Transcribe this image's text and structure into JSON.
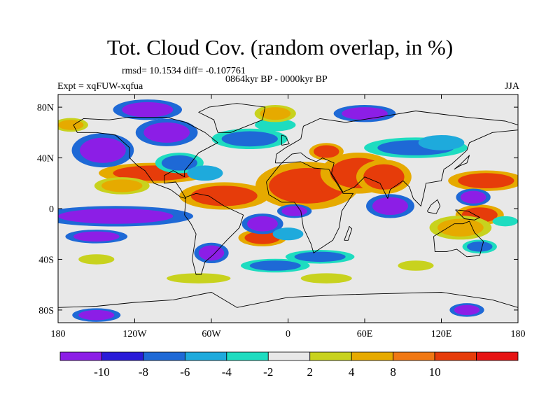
{
  "title": "Tot. Cloud Cov. (random overlap, in %)",
  "stats": "rmsd= 10.1534 diff= -0.107761",
  "period": "0864kyr BP - 0000kyr BP",
  "experiment": "Expt = xqFUW-xqfua",
  "season": "JJA",
  "map": {
    "projection": "cylindrical-equidistant",
    "lon_range": [
      -180,
      180
    ],
    "lat_range": [
      -90,
      90
    ],
    "lon_ticks": [
      {
        "value": -180,
        "label": "180"
      },
      {
        "value": -120,
        "label": "120W"
      },
      {
        "value": -60,
        "label": "60W"
      },
      {
        "value": 0,
        "label": "0"
      },
      {
        "value": 60,
        "label": "60E"
      },
      {
        "value": 120,
        "label": "120E"
      },
      {
        "value": 180,
        "label": "180"
      }
    ],
    "lat_ticks": [
      {
        "value": 80,
        "label": "80N"
      },
      {
        "value": 40,
        "label": "40N"
      },
      {
        "value": 0,
        "label": "0"
      },
      {
        "value": -40,
        "label": "40S"
      },
      {
        "value": -80,
        "label": "80S"
      }
    ],
    "background_color": "#e8e8e8",
    "coastline_color": "#000000",
    "features": [
      {
        "value": 12,
        "lon": 15,
        "lat": 18,
        "rlon": 30,
        "rlat": 14,
        "desc": "Africa/Arabia"
      },
      {
        "value": 12,
        "lon": 55,
        "lat": 28,
        "rlon": 22,
        "rlat": 12
      },
      {
        "value": 12,
        "lon": 75,
        "lat": 25,
        "rlon": 16,
        "rlat": 10
      },
      {
        "value": 12,
        "lon": -50,
        "lat": 10,
        "rlon": 26,
        "rlat": 8
      },
      {
        "value": 12,
        "lon": -105,
        "lat": 28,
        "rlon": 32,
        "rlat": 6
      },
      {
        "value": 12,
        "lon": 155,
        "lat": 22,
        "rlon": 22,
        "rlat": 6
      },
      {
        "value": 12,
        "lon": 150,
        "lat": -5,
        "rlon": 14,
        "rlat": 6
      },
      {
        "value": 12,
        "lon": 30,
        "lat": 45,
        "rlon": 10,
        "rlat": 5
      },
      {
        "value": 12,
        "lon": -20,
        "lat": -23,
        "rlon": 14,
        "rlat": 5
      },
      {
        "value": -12,
        "lon": -135,
        "lat": -6,
        "rlon": 45,
        "rlat": 6
      },
      {
        "value": -12,
        "lon": -145,
        "lat": 46,
        "rlon": 18,
        "rlat": 10
      },
      {
        "value": -12,
        "lon": -95,
        "lat": 60,
        "rlon": 18,
        "rlat": 8
      },
      {
        "value": -12,
        "lon": -150,
        "lat": -22,
        "rlon": 18,
        "rlat": 4
      },
      {
        "value": -12,
        "lon": -20,
        "lat": -12,
        "rlon": 12,
        "rlat": 6
      },
      {
        "value": -12,
        "lon": 5,
        "lat": -2,
        "rlon": 10,
        "rlat": 4
      },
      {
        "value": -12,
        "lon": 80,
        "lat": 2,
        "rlon": 14,
        "rlat": 7
      },
      {
        "value": -12,
        "lon": 145,
        "lat": 9,
        "rlon": 10,
        "rlat": 5
      },
      {
        "value": -12,
        "lon": -60,
        "lat": -35,
        "rlon": 10,
        "rlat": 6
      },
      {
        "value": -12,
        "lon": -110,
        "lat": 78,
        "rlon": 20,
        "rlat": 6
      },
      {
        "value": -12,
        "lon": 60,
        "lat": 75,
        "rlon": 18,
        "rlat": 5
      },
      {
        "value": -12,
        "lon": -150,
        "lat": -84,
        "rlon": 14,
        "rlat": 4
      },
      {
        "value": -12,
        "lon": 140,
        "lat": -80,
        "rlon": 10,
        "rlat": 4
      },
      {
        "value": -7,
        "lon": -30,
        "lat": 55,
        "rlon": 22,
        "rlat": 6
      },
      {
        "value": -7,
        "lon": -85,
        "lat": 36,
        "rlon": 14,
        "rlat": 6
      },
      {
        "value": -7,
        "lon": 100,
        "lat": 48,
        "rlon": 30,
        "rlat": 6
      },
      {
        "value": -7,
        "lon": 25,
        "lat": -38,
        "rlon": 20,
        "rlat": 4
      },
      {
        "value": -7,
        "lon": -10,
        "lat": -45,
        "rlon": 20,
        "rlat": 4
      },
      {
        "value": -7,
        "lon": 150,
        "lat": -30,
        "rlon": 10,
        "rlat": 4
      },
      {
        "value": -5,
        "lon": 120,
        "lat": 52,
        "rlon": 18,
        "rlat": 6
      },
      {
        "value": -5,
        "lon": -65,
        "lat": 28,
        "rlon": 14,
        "rlat": 6
      },
      {
        "value": -5,
        "lon": 0,
        "lat": -20,
        "rlon": 12,
        "rlat": 5
      },
      {
        "value": -3,
        "lon": 170,
        "lat": -10,
        "rlon": 10,
        "rlat": 4
      },
      {
        "value": -3,
        "lon": -10,
        "lat": 66,
        "rlon": 16,
        "rlat": 5
      },
      {
        "value": 6,
        "lon": 135,
        "lat": -15,
        "rlon": 18,
        "rlat": 7
      },
      {
        "value": 6,
        "lon": -130,
        "lat": 18,
        "rlon": 16,
        "rlat": 5
      },
      {
        "value": 6,
        "lon": -10,
        "lat": 75,
        "rlon": 12,
        "rlat": 5
      },
      {
        "value": 6,
        "lon": -170,
        "lat": 66,
        "rlon": 10,
        "rlat": 4
      },
      {
        "value": 3,
        "lon": -70,
        "lat": -55,
        "rlon": 25,
        "rlat": 4
      },
      {
        "value": 3,
        "lon": 30,
        "lat": -55,
        "rlon": 20,
        "rlat": 4
      },
      {
        "value": 3,
        "lon": -150,
        "lat": -40,
        "rlon": 14,
        "rlat": 4
      },
      {
        "value": 3,
        "lon": 100,
        "lat": -45,
        "rlon": 14,
        "rlat": 4
      }
    ],
    "land_outlines": [
      {
        "name": "north-america",
        "points": [
          [
            -168,
            66
          ],
          [
            -160,
            71
          ],
          [
            -140,
            70
          ],
          [
            -125,
            72
          ],
          [
            -95,
            72
          ],
          [
            -80,
            68
          ],
          [
            -65,
            60
          ],
          [
            -55,
            52
          ],
          [
            -70,
            44
          ],
          [
            -76,
            36
          ],
          [
            -81,
            30
          ],
          [
            -81,
            25
          ],
          [
            -90,
            30
          ],
          [
            -97,
            26
          ],
          [
            -97,
            20
          ],
          [
            -88,
            21
          ],
          [
            -84,
            15
          ],
          [
            -80,
            8
          ],
          [
            -84,
            9
          ],
          [
            -92,
            15
          ],
          [
            -105,
            20
          ],
          [
            -112,
            30
          ],
          [
            -118,
            34
          ],
          [
            -124,
            40
          ],
          [
            -124,
            48
          ],
          [
            -135,
            58
          ],
          [
            -150,
            60
          ],
          [
            -165,
            60
          ],
          [
            -168,
            66
          ]
        ]
      },
      {
        "name": "south-america",
        "points": [
          [
            -80,
            9
          ],
          [
            -72,
            12
          ],
          [
            -62,
            10
          ],
          [
            -50,
            2
          ],
          [
            -35,
            -5
          ],
          [
            -38,
            -15
          ],
          [
            -48,
            -25
          ],
          [
            -58,
            -36
          ],
          [
            -65,
            -42
          ],
          [
            -68,
            -52
          ],
          [
            -72,
            -52
          ],
          [
            -75,
            -40
          ],
          [
            -72,
            -20
          ],
          [
            -76,
            -12
          ],
          [
            -81,
            -5
          ],
          [
            -80,
            9
          ]
        ]
      },
      {
        "name": "greenland",
        "points": [
          [
            -55,
            60
          ],
          [
            -45,
            60
          ],
          [
            -20,
            70
          ],
          [
            -18,
            80
          ],
          [
            -40,
            83
          ],
          [
            -62,
            80
          ],
          [
            -70,
            76
          ],
          [
            -58,
            70
          ],
          [
            -55,
            60
          ]
        ]
      },
      {
        "name": "africa",
        "points": [
          [
            -17,
            21
          ],
          [
            -10,
            30
          ],
          [
            -5,
            36
          ],
          [
            10,
            37
          ],
          [
            20,
            32
          ],
          [
            32,
            31
          ],
          [
            35,
            25
          ],
          [
            43,
            12
          ],
          [
            51,
            12
          ],
          [
            42,
            -2
          ],
          [
            40,
            -15
          ],
          [
            35,
            -25
          ],
          [
            20,
            -35
          ],
          [
            18,
            -28
          ],
          [
            12,
            -15
          ],
          [
            10,
            -2
          ],
          [
            5,
            5
          ],
          [
            -5,
            5
          ],
          [
            -15,
            11
          ],
          [
            -17,
            21
          ]
        ]
      },
      {
        "name": "eurasia",
        "points": [
          [
            -10,
            36
          ],
          [
            -9,
            43
          ],
          [
            -2,
            48
          ],
          [
            5,
            52
          ],
          [
            10,
            55
          ],
          [
            12,
            65
          ],
          [
            25,
            71
          ],
          [
            45,
            68
          ],
          [
            70,
            72
          ],
          [
            100,
            77
          ],
          [
            140,
            72
          ],
          [
            170,
            69
          ],
          [
            180,
            66
          ],
          [
            180,
            62
          ],
          [
            160,
            60
          ],
          [
            142,
            52
          ],
          [
            140,
            46
          ],
          [
            128,
            35
          ],
          [
            122,
            31
          ],
          [
            120,
            22
          ],
          [
            108,
            20
          ],
          [
            106,
            10
          ],
          [
            104,
            2
          ],
          [
            98,
            8
          ],
          [
            95,
            17
          ],
          [
            90,
            22
          ],
          [
            80,
            15
          ],
          [
            78,
            8
          ],
          [
            72,
            20
          ],
          [
            60,
            25
          ],
          [
            57,
            22
          ],
          [
            52,
            17
          ],
          [
            43,
            13
          ],
          [
            34,
            28
          ],
          [
            36,
            36
          ],
          [
            27,
            40
          ],
          [
            22,
            37
          ],
          [
            15,
            40
          ],
          [
            10,
            44
          ],
          [
            3,
            43
          ],
          [
            -5,
            36
          ],
          [
            -10,
            36
          ]
        ]
      },
      {
        "name": "australia",
        "points": [
          [
            114,
            -22
          ],
          [
            122,
            -17
          ],
          [
            130,
            -12
          ],
          [
            137,
            -12
          ],
          [
            142,
            -10
          ],
          [
            146,
            -19
          ],
          [
            153,
            -26
          ],
          [
            150,
            -37
          ],
          [
            140,
            -38
          ],
          [
            132,
            -32
          ],
          [
            124,
            -34
          ],
          [
            115,
            -34
          ],
          [
            114,
            -22
          ]
        ]
      },
      {
        "name": "madagascar",
        "points": [
          [
            44,
            -25
          ],
          [
            48,
            -14
          ],
          [
            50,
            -16
          ],
          [
            47,
            -25
          ],
          [
            44,
            -25
          ]
        ]
      },
      {
        "name": "antarctica",
        "points": [
          [
            -180,
            -78
          ],
          [
            -150,
            -77
          ],
          [
            -120,
            -74
          ],
          [
            -90,
            -72
          ],
          [
            -60,
            -66
          ],
          [
            -40,
            -78
          ],
          [
            0,
            -70
          ],
          [
            40,
            -68
          ],
          [
            80,
            -67
          ],
          [
            120,
            -66
          ],
          [
            160,
            -72
          ],
          [
            180,
            -78
          ]
        ]
      },
      {
        "name": "borneo",
        "points": [
          [
            109,
            -2
          ],
          [
            112,
            3
          ],
          [
            117,
            7
          ],
          [
            119,
            2
          ],
          [
            116,
            -4
          ],
          [
            110,
            -3
          ],
          [
            109,
            -2
          ]
        ]
      },
      {
        "name": "new-guinea",
        "points": [
          [
            131,
            -1
          ],
          [
            141,
            -2
          ],
          [
            150,
            -7
          ],
          [
            146,
            -9
          ],
          [
            138,
            -8
          ],
          [
            131,
            -1
          ]
        ]
      },
      {
        "name": "japan",
        "points": [
          [
            130,
            31
          ],
          [
            135,
            34
          ],
          [
            140,
            36
          ],
          [
            142,
            42
          ],
          [
            140,
            40
          ],
          [
            135,
            35
          ],
          [
            130,
            31
          ]
        ]
      },
      {
        "name": "uk",
        "points": [
          [
            -5,
            50
          ],
          [
            1,
            51
          ],
          [
            -2,
            57
          ],
          [
            -5,
            58
          ],
          [
            -5,
            50
          ]
        ]
      }
    ]
  },
  "colorbar": {
    "colors": [
      "#8c1ee6",
      "#2a1bd8",
      "#1e69d6",
      "#1eaadc",
      "#1edcc0",
      "#e8e8e8",
      "#c8d21e",
      "#e6aa00",
      "#f07814",
      "#e63c0a",
      "#e61414"
    ],
    "labels": [
      "-10",
      "-8",
      "-6",
      "-4",
      "-2",
      "2",
      "4",
      "8",
      "10"
    ]
  }
}
